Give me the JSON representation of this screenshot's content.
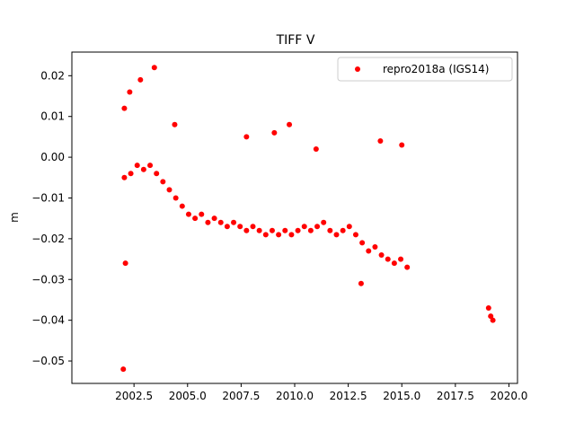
{
  "chart_data": {
    "type": "scatter",
    "title": "TIFF V",
    "xlabel": "",
    "ylabel": "m",
    "xlim": [
      1999.6,
      2020.4
    ],
    "ylim": [
      -0.0555,
      0.0258
    ],
    "xticks": [
      2002.5,
      2005.0,
      2007.5,
      2010.0,
      2012.5,
      2015.0,
      2017.5,
      2020.0
    ],
    "xtick_labels": [
      "2002.5",
      "2005.0",
      "2007.5",
      "2010.0",
      "2012.5",
      "2015.0",
      "2017.5",
      "2020.0"
    ],
    "yticks": [
      0.02,
      0.01,
      0.0,
      -0.01,
      -0.02,
      -0.03,
      -0.04,
      -0.05
    ],
    "ytick_labels": [
      "0.02",
      "0.01",
      "0.00",
      "−0.01",
      "−0.02",
      "−0.03",
      "−0.04",
      "−0.05"
    ],
    "grid": false,
    "legend_position": "top-right",
    "series": [
      {
        "name": "repro2018a (IGS14)",
        "color": "#ff0000",
        "marker": "circle",
        "x": [
          2002.05,
          2002.35,
          2002.65,
          2002.95,
          2003.25,
          2003.55,
          2003.85,
          2004.15,
          2004.45,
          2004.75,
          2005.05,
          2005.35,
          2005.65,
          2005.95,
          2006.25,
          2006.55,
          2006.85,
          2007.15,
          2007.45,
          2007.75,
          2008.05,
          2008.35,
          2008.65,
          2008.95,
          2009.25,
          2009.55,
          2009.85,
          2010.15,
          2010.45,
          2010.75,
          2011.05,
          2011.35,
          2011.65,
          2011.95,
          2012.25,
          2012.55,
          2012.85,
          2013.15,
          2013.45,
          2013.75,
          2014.05,
          2014.35,
          2014.65,
          2014.95,
          2015.25,
          2019.05,
          2019.15,
          2019.25,
          2002.05,
          2002.3,
          2002.8,
          2003.45,
          2004.4,
          2009.05,
          2009.75,
          2002.1,
          2007.75,
          2015.0,
          2002.0,
          2014.0,
          2011.0,
          2013.1
        ],
        "y": [
          -0.005,
          -0.004,
          -0.002,
          -0.003,
          -0.002,
          -0.004,
          -0.006,
          -0.008,
          -0.01,
          -0.012,
          -0.014,
          -0.015,
          -0.014,
          -0.016,
          -0.015,
          -0.016,
          -0.017,
          -0.016,
          -0.017,
          -0.018,
          -0.017,
          -0.018,
          -0.019,
          -0.018,
          -0.019,
          -0.018,
          -0.019,
          -0.018,
          -0.017,
          -0.018,
          -0.017,
          -0.016,
          -0.018,
          -0.019,
          -0.018,
          -0.017,
          -0.019,
          -0.021,
          -0.023,
          -0.022,
          -0.024,
          -0.025,
          -0.026,
          -0.025,
          -0.027,
          -0.037,
          -0.039,
          -0.04,
          0.012,
          0.016,
          0.019,
          0.022,
          0.008,
          0.006,
          0.008,
          -0.026,
          0.005,
          0.003,
          -0.052,
          0.004,
          0.002,
          -0.031
        ]
      }
    ]
  }
}
